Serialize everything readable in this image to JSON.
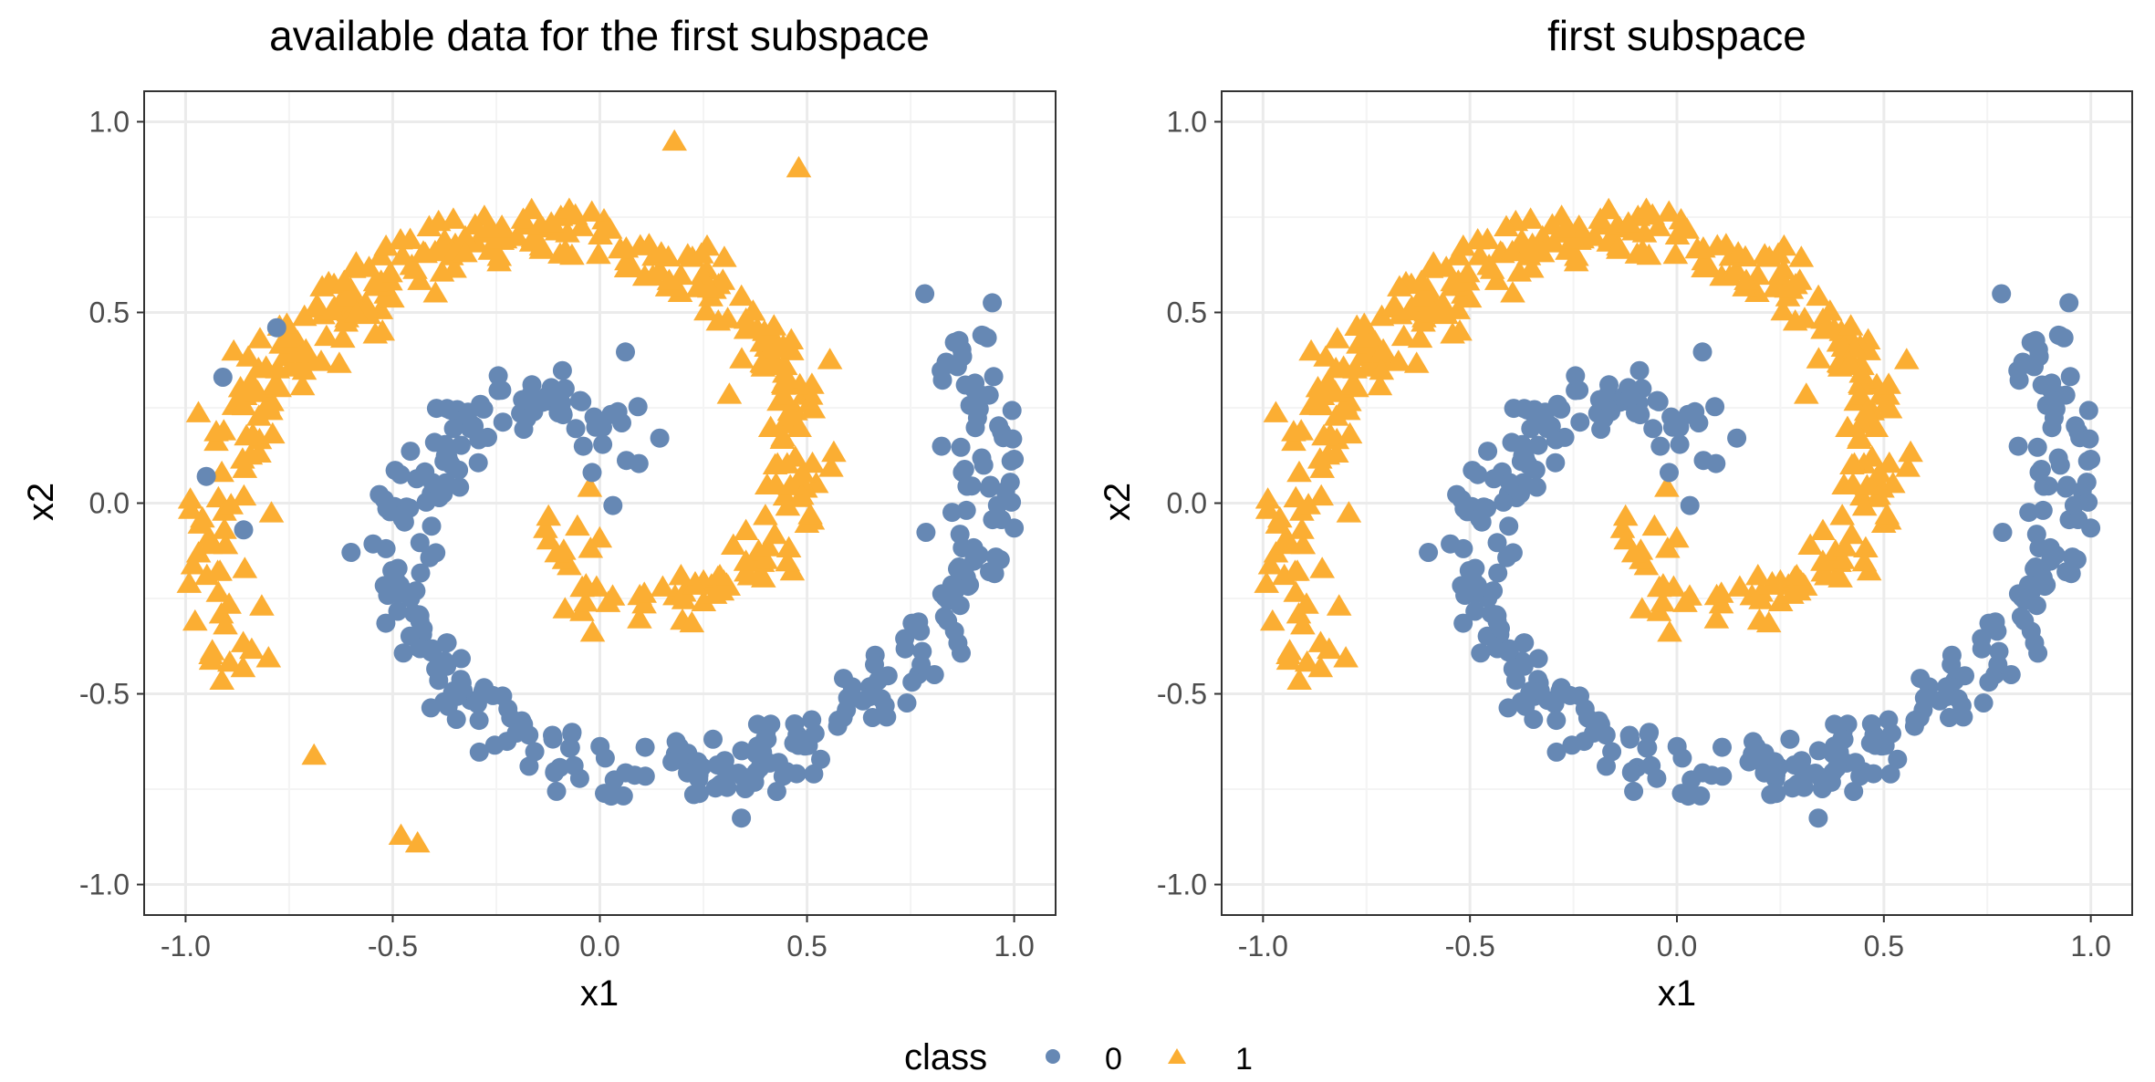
{
  "colors": {
    "class0": "#6688B4",
    "class1": "#FBAE33",
    "grid_major": "#EBEBEB",
    "grid_minor": "#F4F4F4",
    "border": "#333333",
    "tick_text": "#4D4D4D"
  },
  "legend": {
    "title": "class",
    "entries": [
      "0",
      "1"
    ],
    "placement": "bottom"
  },
  "chart_data": [
    {
      "type": "scatter",
      "title": "available data for the first subspace",
      "xlabel": "x1",
      "ylabel": "x2",
      "xlim": [
        -1.1,
        1.1
      ],
      "ylim": [
        -1.08,
        1.08
      ],
      "xticks": [
        "-1.0",
        "-0.5",
        "0.0",
        "0.5",
        "1.0"
      ],
      "yticks": [
        "-1.0",
        "-0.5",
        "0.0",
        "0.5",
        "1.0"
      ],
      "grid": true,
      "spiral_model": {
        "a_max": 6.8,
        "n_points": 700,
        "noise": 0.045,
        "arm_offset": 3.14159
      },
      "extra_points": [
        {
          "class": "0",
          "x": -0.78,
          "y": 0.46
        },
        {
          "class": "0",
          "x": -0.91,
          "y": 0.33
        },
        {
          "class": "0",
          "x": -0.95,
          "y": 0.07
        },
        {
          "class": "0",
          "x": -0.86,
          "y": -0.07
        },
        {
          "class": "1",
          "x": -0.69,
          "y": -0.66
        },
        {
          "class": "1",
          "x": -0.48,
          "y": -0.87
        },
        {
          "class": "1",
          "x": -0.44,
          "y": -0.89
        },
        {
          "class": "1",
          "x": 0.48,
          "y": 0.88
        },
        {
          "class": "1",
          "x": 0.18,
          "y": 0.95
        }
      ]
    },
    {
      "type": "scatter",
      "title": "first subspace",
      "xlabel": "x1",
      "ylabel": "x2",
      "xlim": [
        -1.1,
        1.1
      ],
      "ylim": [
        -1.08,
        1.08
      ],
      "xticks": [
        "-1.0",
        "-0.5",
        "0.0",
        "0.5",
        "1.0"
      ],
      "yticks": [
        "-1.0",
        "-0.5",
        "0.0",
        "0.5",
        "1.0"
      ],
      "grid": true,
      "spiral_model": {
        "a_max": 6.8,
        "n_points": 700,
        "noise": 0.045,
        "arm_offset": 3.14159
      },
      "extra_points": []
    }
  ]
}
